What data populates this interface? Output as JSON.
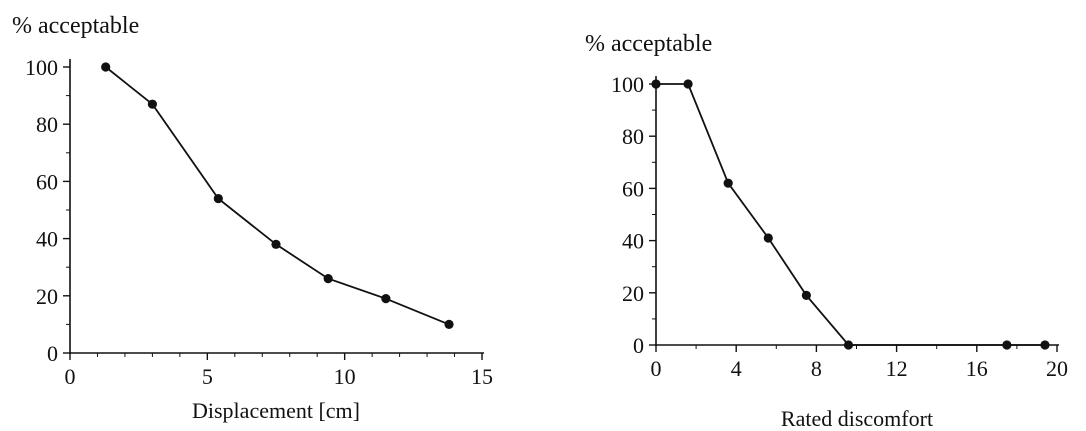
{
  "chart_data": [
    {
      "type": "line",
      "title": "",
      "ylabel": "% acceptable",
      "xlabel": "Displacement [cm]",
      "xlim": [
        0,
        15
      ],
      "ylim": [
        0,
        100
      ],
      "xticks": [
        "0",
        "5",
        "10",
        "15"
      ],
      "yticks": [
        "0",
        "20",
        "40",
        "60",
        "80",
        "100"
      ],
      "grid": false,
      "series": [
        {
          "x": [
            1.3,
            3.0,
            5.4,
            7.5,
            9.4,
            11.5,
            13.8
          ],
          "y": [
            100,
            87,
            54,
            38,
            26,
            19,
            10
          ]
        }
      ]
    },
    {
      "type": "line",
      "title": "",
      "ylabel": "% acceptable",
      "xlabel": "Rated discomfort",
      "xlim": [
        0,
        20
      ],
      "ylim": [
        0,
        100
      ],
      "xticks": [
        "0",
        "4",
        "8",
        "12",
        "16",
        "20"
      ],
      "yticks": [
        "0",
        "20",
        "40",
        "60",
        "80",
        "100"
      ],
      "grid": false,
      "series": [
        {
          "x": [
            0,
            1.6,
            3.6,
            5.6,
            7.5,
            9.6,
            17.5,
            19.4
          ],
          "y": [
            100,
            100,
            62,
            41,
            19,
            0,
            0,
            0
          ]
        }
      ]
    }
  ]
}
